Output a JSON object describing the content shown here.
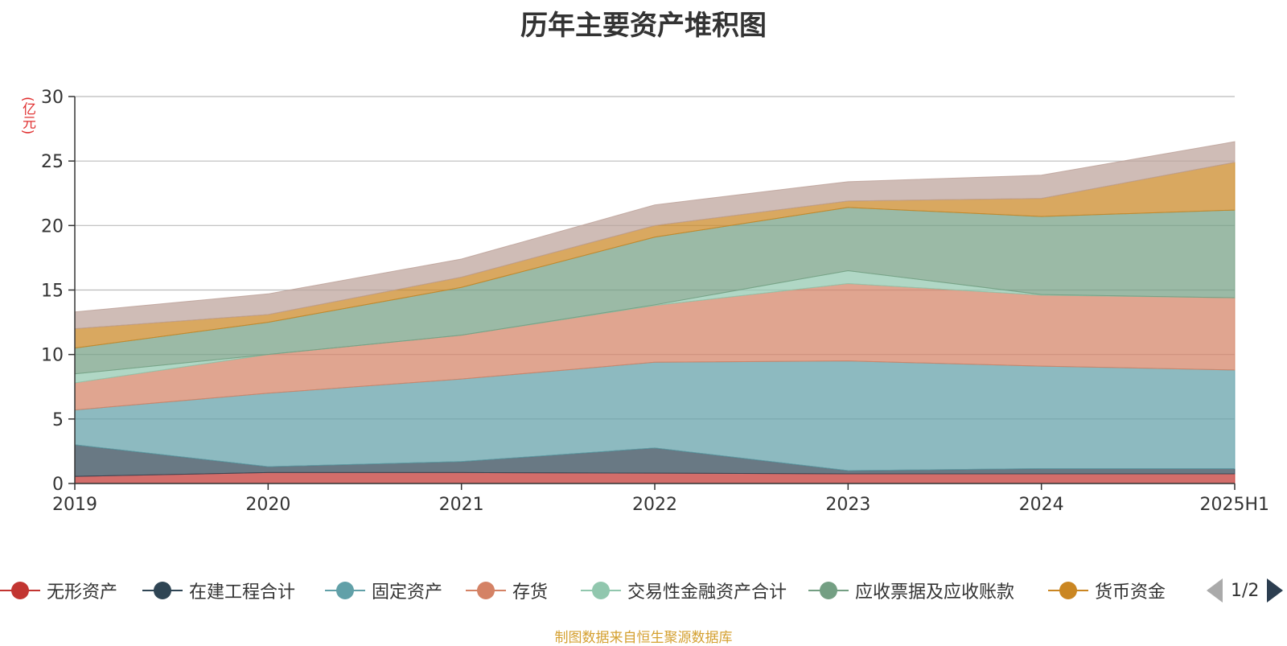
{
  "chart_data": {
    "type": "area",
    "stacked": true,
    "title": "历年主要资产堆积图",
    "unit_label": "(亿元)",
    "x": [
      "2019",
      "2020",
      "2021",
      "2022",
      "2023",
      "2024",
      "2025H1"
    ],
    "ylim": [
      0,
      30
    ],
    "yticks": [
      0,
      5,
      10,
      15,
      20,
      25,
      30
    ],
    "grid": true,
    "legend_position": "bottom",
    "series": [
      {
        "name": "无形资产",
        "color": "#c23531",
        "values": [
          0.55,
          0.85,
          0.85,
          0.8,
          0.75,
          0.75,
          0.75
        ]
      },
      {
        "name": "在建工程合计",
        "color": "#2f4554",
        "values": [
          2.45,
          0.45,
          0.85,
          1.95,
          0.25,
          0.4,
          0.4
        ]
      },
      {
        "name": "固定资产",
        "color": "#61a0a8",
        "values": [
          2.7,
          5.7,
          6.4,
          6.65,
          8.5,
          7.95,
          7.65
        ]
      },
      {
        "name": "存货",
        "color": "#d48265",
        "values": [
          2.1,
          3.0,
          3.4,
          4.4,
          6.0,
          5.5,
          5.6
        ]
      },
      {
        "name": "交易性金融资产合计",
        "color": "#91c7ae",
        "values": [
          0.7,
          0.0,
          0.0,
          0.05,
          1.0,
          0.05,
          0.0
        ]
      },
      {
        "name": "应收票据及应收账款",
        "color": "#749f83",
        "values": [
          2.0,
          2.5,
          3.7,
          5.25,
          4.9,
          6.05,
          6.8
        ]
      },
      {
        "name": "货币资金",
        "color": "#ca8622",
        "values": [
          1.5,
          0.6,
          0.8,
          0.9,
          0.5,
          1.4,
          3.7
        ]
      },
      {
        "name": "",
        "color": "#bda29a",
        "values": [
          1.3,
          1.6,
          1.4,
          1.6,
          1.5,
          1.8,
          1.6
        ]
      }
    ]
  },
  "legend": {
    "items": [
      "无形资产",
      "在建工程合计",
      "固定资产",
      "存货",
      "交易性金融资产合计",
      "应收票据及应收账款",
      "货币资金"
    ],
    "pager": "1/2"
  },
  "source_text": "制图数据来自恒生聚源数据库"
}
